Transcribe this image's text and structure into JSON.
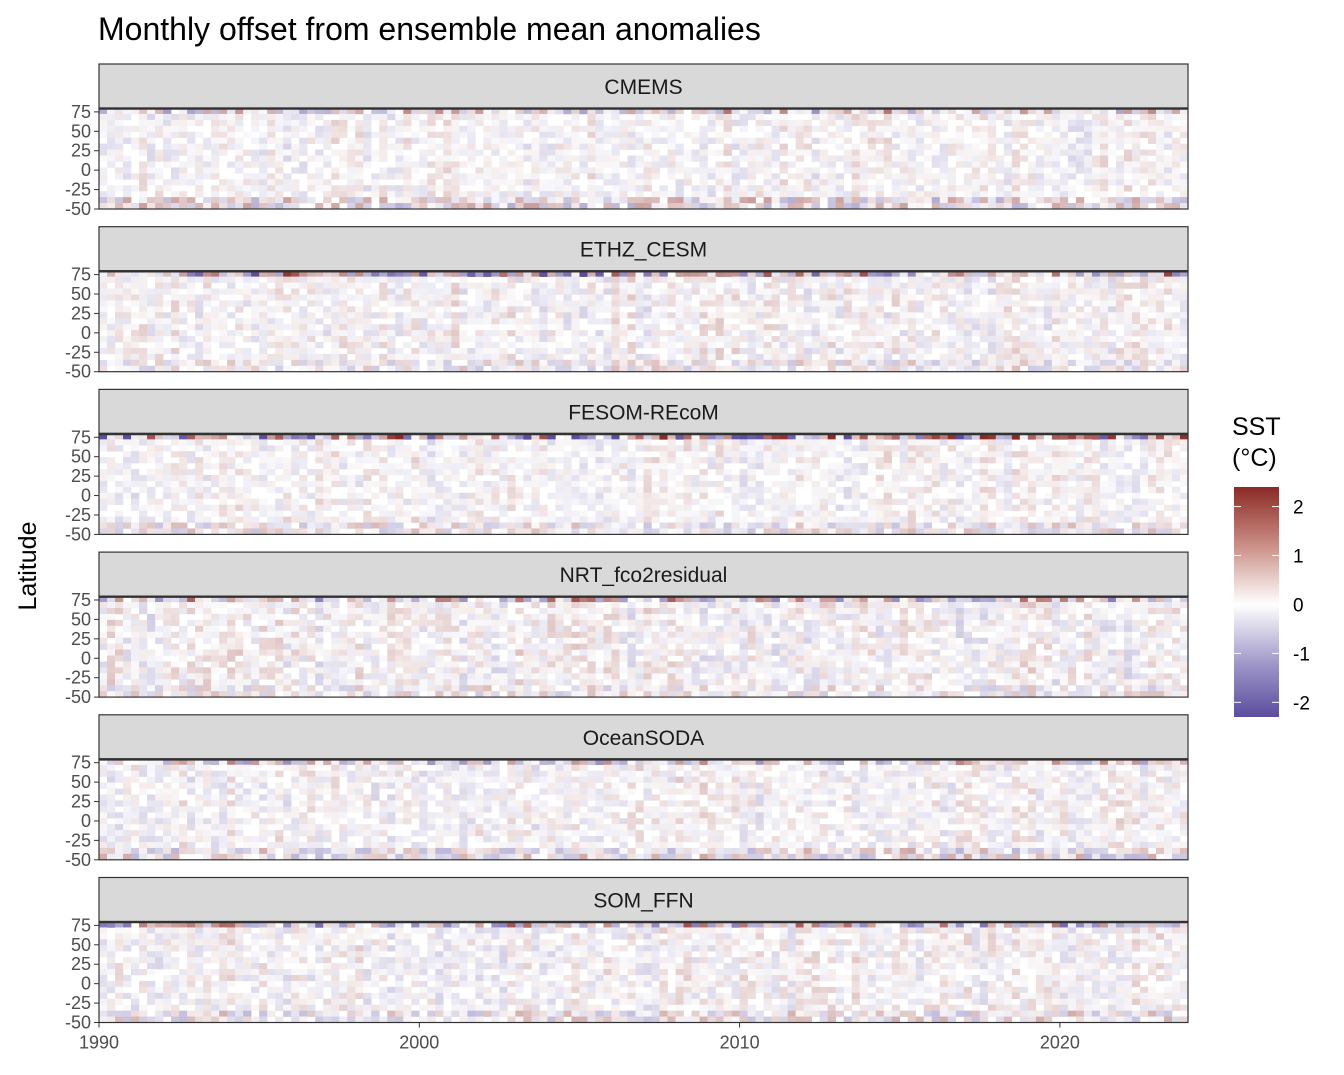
{
  "chart_data": {
    "type": "heatmap",
    "title": "Monthly offset from ensemble mean anomalies",
    "xlabel": "",
    "ylabel": "Latitude",
    "x_range": [
      1990,
      2024
    ],
    "x_ticks": [
      1990,
      2000,
      2010,
      2020
    ],
    "y_range": [
      -50,
      80
    ],
    "y_ticks": [
      -50,
      -25,
      0,
      25,
      50,
      75
    ],
    "y_tick_labels": [
      "-50",
      "-25",
      "0",
      "25",
      "50",
      "75"
    ],
    "legend": {
      "title_line1": "SST",
      "title_line2": "(°C)",
      "range": [
        -2.3,
        2.4
      ],
      "ticks": [
        2,
        1,
        0,
        -1,
        -2
      ],
      "tick_labels": [
        "2",
        "1",
        "0",
        "-1",
        "-2"
      ],
      "colors": [
        "#5c4d9e",
        "#ffffff",
        "#8b2a25"
      ],
      "placement": "right"
    },
    "panels": [
      {
        "name": "CMEMS",
        "seed": 11,
        "top_strength": 0.9,
        "bottom_strength": 1.2,
        "general": 0.35
      },
      {
        "name": "ETHZ_CESM",
        "seed": 23,
        "top_strength": 1.4,
        "bottom_strength": 0.8,
        "general": 0.4
      },
      {
        "name": "FESOM-REcoM",
        "seed": 37,
        "top_strength": 2.0,
        "bottom_strength": 0.9,
        "general": 0.35
      },
      {
        "name": "NRT_fco2residual",
        "seed": 41,
        "top_strength": 1.1,
        "bottom_strength": 0.8,
        "general": 0.45
      },
      {
        "name": "OceanSODA",
        "seed": 53,
        "top_strength": 0.9,
        "bottom_strength": 1.1,
        "general": 0.4
      },
      {
        "name": "SOM_FFN",
        "seed": 67,
        "top_strength": 1.2,
        "bottom_strength": 1.0,
        "general": 0.4
      }
    ],
    "grid": false
  }
}
